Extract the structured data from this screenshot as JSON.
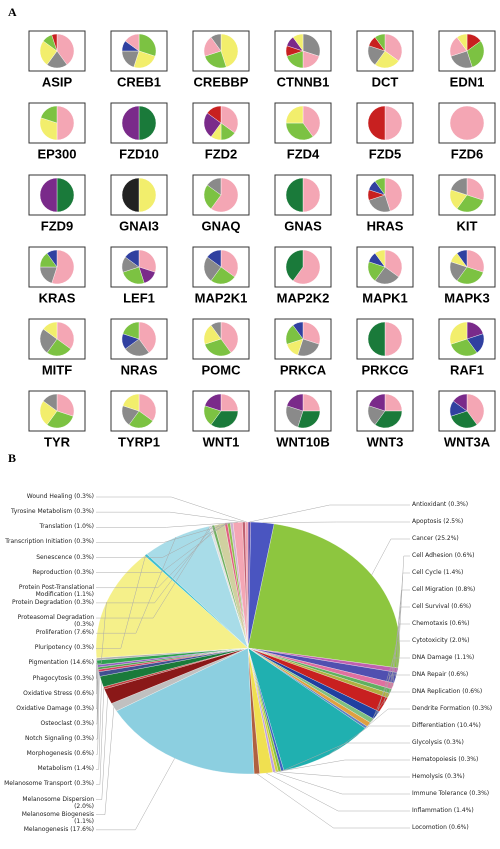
{
  "panel_a": {
    "panel_label": "A",
    "pies": [
      {
        "label": "ASIP",
        "values": [
          40,
          20,
          25,
          10,
          5
        ],
        "colors": [
          "#f4a6b4",
          "#8a8a8a",
          "#f2ee6c",
          "#7cc242",
          "#c82020"
        ]
      },
      {
        "label": "CREB1",
        "values": [
          30,
          25,
          20,
          10,
          15
        ],
        "colors": [
          "#7cc242",
          "#f2ee6c",
          "#8a8a8a",
          "#3040a0",
          "#f4a6b4"
        ]
      },
      {
        "label": "CREBBP",
        "values": [
          45,
          25,
          20,
          10
        ],
        "colors": [
          "#f2ee6c",
          "#7cc242",
          "#f4a6b4",
          "#8a8a8a"
        ]
      },
      {
        "label": "CTNNB1",
        "values": [
          30,
          20,
          20,
          10,
          10,
          10
        ],
        "colors": [
          "#8a8a8a",
          "#f4a6b4",
          "#7cc242",
          "#c82020",
          "#7a2a8a",
          "#f2ee6c"
        ]
      },
      {
        "label": "DCT",
        "values": [
          35,
          25,
          20,
          10,
          10
        ],
        "colors": [
          "#f4a6b4",
          "#f2ee6c",
          "#8a8a8a",
          "#c82020",
          "#7cc242"
        ]
      },
      {
        "label": "EDN1",
        "values": [
          15,
          30,
          25,
          20,
          10
        ],
        "colors": [
          "#c82020",
          "#7cc242",
          "#8a8a8a",
          "#f4a6b4",
          "#f2ee6c"
        ]
      },
      {
        "label": "EP300",
        "values": [
          50,
          30,
          20
        ],
        "colors": [
          "#f4a6b4",
          "#f2ee6c",
          "#7cc242"
        ]
      },
      {
        "label": "FZD10",
        "values": [
          50,
          50
        ],
        "colors": [
          "#1a7a3a",
          "#7a2a8a"
        ]
      },
      {
        "label": "FZD2",
        "values": [
          35,
          15,
          10,
          25,
          15
        ],
        "colors": [
          "#f4a6b4",
          "#7cc242",
          "#f2ee6c",
          "#7a2a8a",
          "#c82020"
        ]
      },
      {
        "label": "FZD4",
        "values": [
          40,
          35,
          25
        ],
        "colors": [
          "#f4a6b4",
          "#7cc242",
          "#f2ee6c"
        ]
      },
      {
        "label": "FZD5",
        "values": [
          50,
          50
        ],
        "colors": [
          "#f4a6b4",
          "#c82020"
        ]
      },
      {
        "label": "FZD6",
        "values": [
          100
        ],
        "colors": [
          "#f4a6b4"
        ]
      },
      {
        "label": "FZD9",
        "values": [
          50,
          50
        ],
        "colors": [
          "#1a7a3a",
          "#7a2a8a"
        ]
      },
      {
        "label": "GNAI3",
        "values": [
          50,
          50
        ],
        "colors": [
          "#f2ee6c",
          "#222222"
        ]
      },
      {
        "label": "GNAQ",
        "values": [
          60,
          25,
          15
        ],
        "colors": [
          "#f4a6b4",
          "#7cc242",
          "#8a8a8a"
        ]
      },
      {
        "label": "GNAS",
        "values": [
          50,
          50
        ],
        "colors": [
          "#f4a6b4",
          "#1a7a3a"
        ]
      },
      {
        "label": "HRAS",
        "values": [
          45,
          25,
          10,
          10,
          10
        ],
        "colors": [
          "#f4a6b4",
          "#8a8a8a",
          "#c82020",
          "#3040a0",
          "#7cc242"
        ]
      },
      {
        "label": "KIT",
        "values": [
          30,
          30,
          20,
          20
        ],
        "colors": [
          "#f4a6b4",
          "#7cc242",
          "#f2ee6c",
          "#8a8a8a"
        ]
      },
      {
        "label": "KRAS",
        "values": [
          55,
          20,
          15,
          10
        ],
        "colors": [
          "#f4a6b4",
          "#8a8a8a",
          "#7cc242",
          "#3040a0"
        ]
      },
      {
        "label": "LEF1",
        "values": [
          30,
          15,
          25,
          15,
          15
        ],
        "colors": [
          "#f4a6b4",
          "#7a2a8a",
          "#7cc242",
          "#8a8a8a",
          "#3040a0"
        ]
      },
      {
        "label": "MAP2K1",
        "values": [
          35,
          25,
          25,
          15
        ],
        "colors": [
          "#f4a6b4",
          "#7cc242",
          "#8a8a8a",
          "#3040a0"
        ]
      },
      {
        "label": "MAP2K2",
        "values": [
          60,
          40
        ],
        "colors": [
          "#f4a6b4",
          "#1a7a3a"
        ]
      },
      {
        "label": "MAPK1",
        "values": [
          35,
          25,
          20,
          10,
          10
        ],
        "colors": [
          "#f4a6b4",
          "#8a8a8a",
          "#7cc242",
          "#3040a0",
          "#f2ee6c"
        ]
      },
      {
        "label": "MAPK3",
        "values": [
          30,
          30,
          20,
          10,
          10
        ],
        "colors": [
          "#f4a6b4",
          "#7cc242",
          "#8a8a8a",
          "#f2ee6c",
          "#3040a0"
        ]
      },
      {
        "label": "MITF",
        "values": [
          35,
          25,
          25,
          15
        ],
        "colors": [
          "#f4a6b4",
          "#7cc242",
          "#8a8a8a",
          "#f2ee6c"
        ]
      },
      {
        "label": "NRAS",
        "values": [
          40,
          25,
          15,
          20
        ],
        "colors": [
          "#f4a6b4",
          "#8a8a8a",
          "#3040a0",
          "#7cc242"
        ]
      },
      {
        "label": "POMC",
        "values": [
          40,
          30,
          20,
          10
        ],
        "colors": [
          "#f4a6b4",
          "#7cc242",
          "#f2ee6c",
          "#8a8a8a"
        ]
      },
      {
        "label": "PRKCA",
        "values": [
          30,
          25,
          15,
          20,
          10
        ],
        "colors": [
          "#f4a6b4",
          "#8a8a8a",
          "#f2ee6c",
          "#7cc242",
          "#3040a0"
        ]
      },
      {
        "label": "PRKCG",
        "values": [
          50,
          50
        ],
        "colors": [
          "#f4a6b4",
          "#1a7a3a"
        ]
      },
      {
        "label": "RAF1",
        "values": [
          20,
          20,
          30,
          30
        ],
        "colors": [
          "#7a2a8a",
          "#3040a0",
          "#7cc242",
          "#f2ee6c"
        ]
      },
      {
        "label": "TYR",
        "values": [
          30,
          30,
          25,
          15
        ],
        "colors": [
          "#f4a6b4",
          "#7cc242",
          "#f2ee6c",
          "#8a8a8a"
        ]
      },
      {
        "label": "TYRP1",
        "values": [
          35,
          25,
          20,
          20
        ],
        "colors": [
          "#f4a6b4",
          "#7cc242",
          "#8a8a8a",
          "#f2ee6c"
        ]
      },
      {
        "label": "WNT1",
        "values": [
          25,
          35,
          20,
          20
        ],
        "colors": [
          "#f4a6b4",
          "#1a7a3a",
          "#7cc242",
          "#7a2a8a"
        ]
      },
      {
        "label": "WNT10B",
        "values": [
          25,
          30,
          25,
          20
        ],
        "colors": [
          "#f4a6b4",
          "#1a7a3a",
          "#8a8a8a",
          "#7a2a8a"
        ]
      },
      {
        "label": "WNT3",
        "values": [
          25,
          35,
          20,
          20
        ],
        "colors": [
          "#f4a6b4",
          "#1a7a3a",
          "#8a8a8a",
          "#7a2a8a"
        ]
      },
      {
        "label": "WNT3A",
        "values": [
          40,
          30,
          15,
          15
        ],
        "colors": [
          "#f4a6b4",
          "#1a7a3a",
          "#3040a0",
          "#7a2a8a"
        ]
      }
    ]
  },
  "chart_data": {
    "type": "pie",
    "panel_label": "B",
    "labels": [
      "Antioxidant (0.3%)",
      "Apoptosis (2.5%)",
      "Cancer (25.2%)",
      "Cell Adhesion (0.6%)",
      "Cell Cycle (1.4%)",
      "Cell Migration (0.8%)",
      "Cell Survival (0.6%)",
      "Chemotaxis (0.6%)",
      "Cytotoxicity (2.0%)",
      "DNA Damage (1.1%)",
      "DNA Repair (0.6%)",
      "DNA Replication (0.6%)",
      "Dendrite Formation (0.3%)",
      "Differentiation (10.4%)",
      "Glycolysis (0.3%)",
      "Hematopoiesis (0.3%)",
      "Hemolysis (0.3%)",
      "Immune Tolerance (0.3%)",
      "Inflammation (1.4%)",
      "Locomotion (0.6%)",
      "Melanogenesis (17.6%)",
      "Melanosome Biogenesis (1.1%)",
      "Melanosome Dispersion (2.0%)",
      "Melanosome Transport (0.3%)",
      "Metabolism (1.4%)",
      "Morphogenesis (0.6%)",
      "Notch Signaling (0.3%)",
      "Osteoclast (0.3%)",
      "Oxidative Damage (0.3%)",
      "Oxidative Stress (0.6%)",
      "Phagocytosis (0.3%)",
      "Pigmentation (14.6%)",
      "Pluripotency (0.3%)",
      "Proliferation (7.6%)",
      "Proteasomal Degradation (0.3%)",
      "Protein Degradation (0.3%)",
      "Protein Post-Translational Modification (1.1%)",
      "Reproduction (0.3%)",
      "Senescence (0.3%)",
      "Transcription Initiation (0.3%)",
      "Translation (1.0%)",
      "Tyrosine Metabolism (0.3%)",
      "Wound Healing (0.3%)"
    ],
    "values": [
      0.3,
      2.5,
      25.2,
      0.6,
      1.4,
      0.8,
      0.6,
      0.6,
      2.0,
      1.1,
      0.6,
      0.6,
      0.3,
      10.4,
      0.3,
      0.3,
      0.3,
      0.3,
      1.4,
      0.6,
      17.6,
      1.1,
      2.0,
      0.3,
      1.4,
      0.6,
      0.3,
      0.3,
      0.3,
      0.6,
      0.3,
      14.6,
      0.3,
      7.6,
      0.3,
      0.3,
      1.1,
      0.3,
      0.3,
      0.3,
      1.0,
      0.3,
      0.3
    ],
    "colors": [
      "#6a4aa0",
      "#4a55c0",
      "#8dc63f",
      "#c060b0",
      "#5050b0",
      "#e070a0",
      "#60b060",
      "#b0b040",
      "#c82020",
      "#2040a0",
      "#80c080",
      "#e0a040",
      "#6080c0",
      "#20b0b0",
      "#4060c0",
      "#80c040",
      "#d0d040",
      "#c0a0e0",
      "#f0e050",
      "#b06040",
      "#8ccfe0",
      "#c0c0c0",
      "#8a1818",
      "#c04040",
      "#1a7a3a",
      "#405090",
      "#d04060",
      "#50a050",
      "#9060c0",
      "#30a050",
      "#b0b0b0",
      "#f5f08a",
      "#40c0d0",
      "#a8dce8",
      "#e0e0e0",
      "#70b060",
      "#d0d0a0",
      "#e06080",
      "#90c050",
      "#d0b0d0",
      "#f4a6b4",
      "#c06070",
      "#f0a0b0"
    ]
  }
}
